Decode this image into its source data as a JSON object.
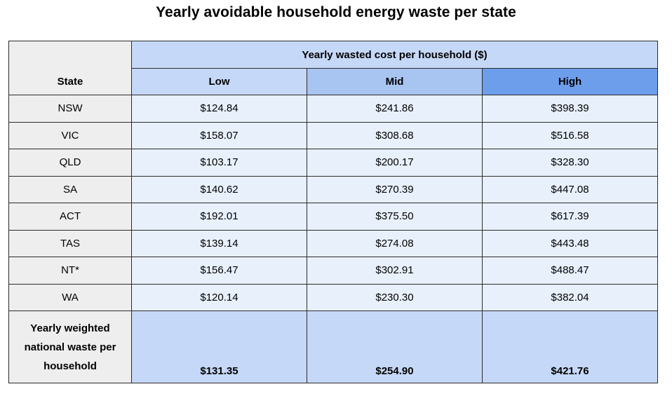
{
  "chart_data": {
    "type": "table",
    "title": "Yearly avoidable household energy waste per state",
    "row_header": "State",
    "group_header": "Yearly wasted cost per household ($)",
    "columns": [
      "Low",
      "Mid",
      "High"
    ],
    "rows": [
      {
        "state": "NSW",
        "low": "$124.84",
        "mid": "$241.86",
        "high": "$398.39"
      },
      {
        "state": "VIC",
        "low": "$158.07",
        "mid": "$308.68",
        "high": "$516.58"
      },
      {
        "state": "QLD",
        "low": "$103.17",
        "mid": "$200.17",
        "high": "$328.30"
      },
      {
        "state": "SA",
        "low": "$140.62",
        "mid": "$270.39",
        "high": "$447.08"
      },
      {
        "state": "ACT",
        "low": "$192.01",
        "mid": "$375.50",
        "high": "$617.39"
      },
      {
        "state": "TAS",
        "low": "$139.14",
        "mid": "$274.08",
        "high": "$443.48"
      },
      {
        "state": "NT*",
        "low": "$156.47",
        "mid": "$302.91",
        "high": "$488.47"
      },
      {
        "state": "WA",
        "low": "$120.14",
        "mid": "$230.30",
        "high": "$382.04"
      }
    ],
    "total": {
      "label_lines": [
        "Yearly weighted",
        "national waste per",
        "household"
      ],
      "low": "$131.35",
      "mid": "$254.90",
      "high": "$421.76"
    },
    "colors": {
      "header_light": "#c6d8f7",
      "header_mid": "#a8c4f0",
      "header_high": "#6d9eeb",
      "cell_light": "#e8f0fc",
      "state_grey": "#eeeeee"
    }
  }
}
